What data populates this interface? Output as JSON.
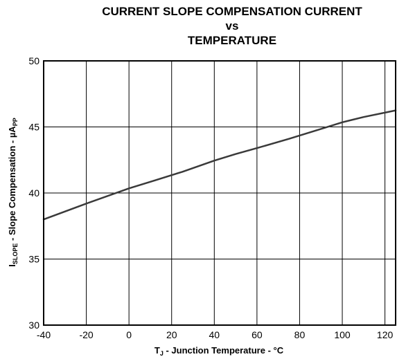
{
  "chart_data": {
    "type": "line",
    "title_lines": [
      "CURRENT SLOPE COMPENSATION CURRENT",
      "vs",
      "TEMPERATURE"
    ],
    "xlabel": {
      "main": "T",
      "sub": "J",
      "rest": " - Junction Temperature - °C"
    },
    "ylabel": {
      "main": "I",
      "sub": "SLOPE",
      "mid": " - Slope Compensation - µA",
      "sub2": "PP"
    },
    "xlim": [
      -40,
      125
    ],
    "ylim": [
      30,
      50
    ],
    "x_ticks": [
      -40,
      -20,
      0,
      20,
      40,
      60,
      80,
      100,
      120
    ],
    "y_ticks": [
      30,
      35,
      40,
      45,
      50
    ],
    "x_tick_labels": [
      "-40",
      "-20",
      "0",
      "20",
      "40",
      "60",
      "80",
      "100",
      "120"
    ],
    "y_tick_labels": [
      "30",
      "35",
      "40",
      "45",
      "50"
    ],
    "grid": true,
    "series": [
      {
        "color": "#3a3a3a",
        "x": [
          -40,
          -20,
          0,
          12,
          25,
          40,
          50,
          60,
          75,
          90,
          100,
          110,
          125
        ],
        "y": [
          38.0,
          39.2,
          40.35,
          40.95,
          41.6,
          42.45,
          42.95,
          43.4,
          44.1,
          44.85,
          45.35,
          45.75,
          46.25
        ]
      }
    ]
  }
}
